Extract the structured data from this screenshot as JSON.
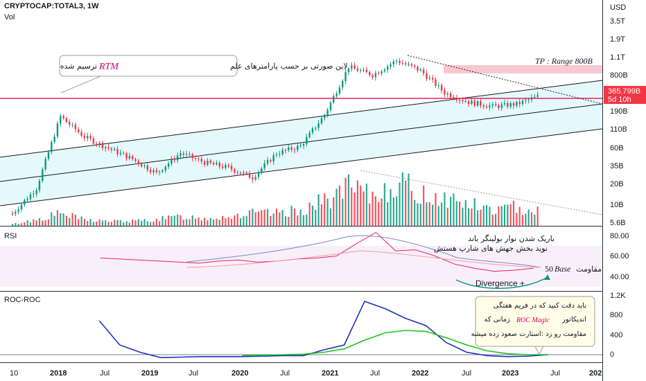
{
  "symbol": "CRYPTOCAP:TOTAL3, 1W",
  "vol_label": "Vol",
  "currency": "USD",
  "colors": {
    "up": "#089981",
    "down": "#f23645",
    "channel_fill": "#e0f7fa",
    "support": "#e91e63",
    "tp_zone": "#f8c8d0",
    "rsi": "#e91e63",
    "rsi_band": "#f3e5f5",
    "bb_upper": "#7986cb",
    "bb_basis": "#ef9a9a",
    "roc": "#1f2fbf",
    "roc_ma": "#1bc41b",
    "annotation": "#089981",
    "price_tag": "#f23645",
    "magic_text": "#d6006b",
    "note_bg": "#fffde7"
  },
  "price_axis": {
    "ticks": [
      "3.5T",
      "1.9T",
      "1.1T",
      "800B",
      "365.799B",
      "190B",
      "110B",
      "60B",
      "35B",
      "20B",
      "10B",
      "5.6B"
    ],
    "current_price": "365.799B",
    "countdown": "5d 10h"
  },
  "rsi_panel": {
    "label": "RSI",
    "ticks": [
      "80.00",
      "60.00",
      "40.00"
    ]
  },
  "roc_panel": {
    "label": "ROC-ROC",
    "ticks": [
      "1.2K",
      "800",
      "400",
      "0"
    ]
  },
  "time_axis": [
    "10",
    "2018",
    "Jul",
    "2019",
    "Jul",
    "2020",
    "Jul",
    "2021",
    "Jul",
    "2022",
    "Jul",
    "2023",
    "Jul",
    "202"
  ],
  "annotations": {
    "rtm_note": "لاین صورتی بر حسب پارامترهای علم",
    "rtm_word": "RTM",
    "rtm_suffix": "ترسیم شده",
    "tp": "TP : Range 800B",
    "bb_line1": "باریک شدن نوار بولینگر باند",
    "bb_line2": "نوید بخش جهش های شارپ هستش",
    "base_word": "Base",
    "base_num": "50",
    "base_resist": "مقاومت",
    "divergence": "Divergence +",
    "roc_line1": "باید دقت کنید که در فریم هفتگی",
    "roc_line2_pre": "اندیکاتور",
    "roc_line2_magic": "ROC Magic",
    "roc_line2_post": "زمانی که",
    "roc_line3": "مقاومت رو زد :استارت صعود زده میشه"
  },
  "chart_data": [
    {
      "type": "line",
      "title": "CRYPTOCAP:TOTAL3, 1W",
      "yscale": "log",
      "ylabel": "USD",
      "note": "weekly candlesticks, approximate",
      "x": [
        "2017-10",
        "2018-01",
        "2018-04",
        "2018-07",
        "2018-10",
        "2019-01",
        "2019-04",
        "2019-07",
        "2019-10",
        "2020-01",
        "2020-03",
        "2020-07",
        "2020-10",
        "2021-01",
        "2021-04",
        "2021-07",
        "2021-11",
        "2022-01",
        "2022-04",
        "2022-07",
        "2022-10",
        "2023-01",
        "2023-04"
      ],
      "series": [
        {
          "values": [
            9,
            20,
            190,
            100,
            70,
            50,
            32,
            60,
            45,
            38,
            28,
            60,
            75,
            200,
            900,
            700,
            1100,
            800,
            400,
            300,
            260,
            280,
            366
          ]
        }
      ],
      "ylim": [
        5.6,
        3500
      ]
    },
    {
      "type": "bar",
      "series": [
        {
          "name": "Vol",
          "values": [
            0.5,
            2,
            4,
            2,
            1.5,
            1.5,
            2,
            3,
            2.5,
            3,
            4,
            4,
            5,
            8,
            12,
            9,
            14,
            10,
            9,
            7,
            5,
            6,
            5
          ]
        }
      ]
    },
    {
      "type": "line",
      "series": [
        {
          "name": "RSI",
          "values": [
            58,
            57,
            56,
            55,
            54,
            53,
            55,
            56,
            54,
            55,
            57,
            58,
            60,
            72,
            83,
            65,
            66,
            60,
            52,
            48,
            45,
            46,
            48
          ]
        }
      ],
      "ylim": [
        30,
        85
      ]
    },
    {
      "type": "line",
      "series": [
        {
          "name": "ROC",
          "values": [
            700,
            200,
            50,
            -60,
            -50,
            -40,
            -40,
            -40,
            -30,
            -20,
            -20,
            100,
            200,
            1100,
            950,
            750,
            600,
            250,
            50,
            -20,
            -40,
            -30,
            0
          ]
        },
        {
          "values": [
            null,
            null,
            null,
            null,
            null,
            null,
            null,
            -20,
            -10,
            0,
            10,
            50,
            120,
            300,
            450,
            500,
            480,
            350,
            200,
            80,
            20,
            0,
            0
          ]
        }
      ],
      "ylim": [
        -100,
        1200
      ]
    }
  ]
}
